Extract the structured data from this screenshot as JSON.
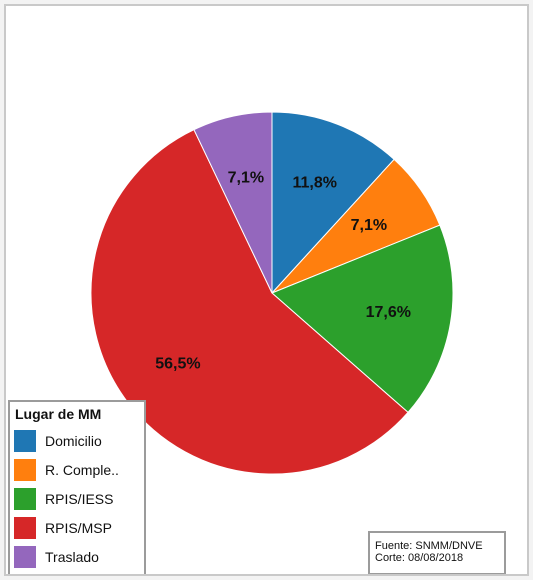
{
  "chart_data": {
    "type": "pie",
    "slices": [
      {
        "label": "Domicilio",
        "value": 11.8,
        "display": "11,8%",
        "color": "#1f77b4"
      },
      {
        "label": "R. Comple..",
        "value": 7.1,
        "display": "7,1%",
        "color": "#ff7f0e"
      },
      {
        "label": "RPIS/IESS",
        "value": 17.6,
        "display": "17,6%",
        "color": "#2ca02c"
      },
      {
        "label": "RPIS/MSP",
        "value": 56.5,
        "display": "56,5%",
        "color": "#d62728"
      },
      {
        "label": "Traslado",
        "value": 7.1,
        "display": "7,1%",
        "color": "#9467bd"
      }
    ],
    "legend_title": "Lugar de MM",
    "legend_position": "bottom-left",
    "start": "12 o'clock",
    "direction": "clockwise"
  },
  "source": {
    "line1": "Fuente: SNMM/DNVE",
    "line2": "Corte: 08/08/2018"
  }
}
